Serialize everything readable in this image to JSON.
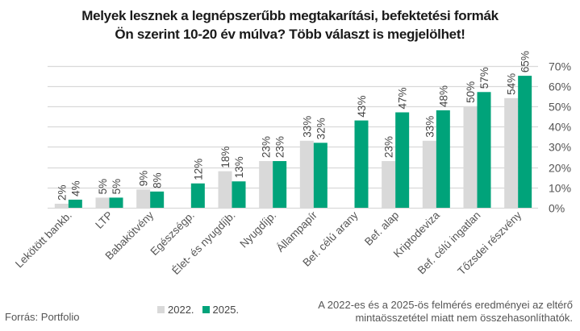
{
  "title": {
    "line1": "Melyek lesznek a legnépszerűbb megtakarítási, befektetési formák",
    "line2": "Ön szerint 10-20 év múlva? Több választ is megjelölhet!"
  },
  "footer": {
    "source": "Forrás: Portfolio",
    "note_line1": "A 2022-es és a 2025-ös felmérés eredményei az eltérő",
    "note_line2": "mintaösszetétel miatt nem összehasonlíthatók."
  },
  "colors": {
    "series_2022": "#d9d9d9",
    "series_2025": "#00a37a",
    "grid": "#d9d9d9",
    "text": "#444444"
  },
  "chart_data": {
    "type": "bar",
    "title": "Melyek lesznek a legnépszerűbb megtakarítási, befektetési formák Ön szerint 10-20 év múlva? Több választ is megjelölhet!",
    "xlabel": "",
    "ylabel": "",
    "ylim": [
      0,
      70
    ],
    "yticks": [
      0,
      10,
      20,
      30,
      40,
      50,
      60,
      70
    ],
    "ytick_labels": [
      "0%",
      "10%",
      "20%",
      "30%",
      "40%",
      "50%",
      "60%",
      "70%"
    ],
    "y_axis_side": "right",
    "grid": true,
    "legend_position": "bottom",
    "categories": [
      "Lekötött bankb.",
      "LTP",
      "Babakötvény",
      "Egészségp.",
      "Élet- és nyugdíjb.",
      "Nyugdíjp.",
      "Állampapír",
      "Bef. célú arany",
      "Bef. alap",
      "Kriptodeviza",
      "Bef. célú ingatlan",
      "Tőzsdei részvény"
    ],
    "series": [
      {
        "name": "2022.",
        "values": [
          2,
          5,
          9,
          null,
          18,
          23,
          33,
          null,
          23,
          33,
          50,
          54
        ],
        "labels": [
          "2%",
          "5%",
          "9%",
          "",
          "18%",
          "23%",
          "33%",
          "",
          "23%",
          "33%",
          "50%",
          "54%"
        ]
      },
      {
        "name": "2025.",
        "values": [
          4,
          5,
          8,
          12,
          13,
          23,
          32,
          43,
          47,
          48,
          57,
          65
        ],
        "labels": [
          "4%",
          "5%",
          "8%",
          "12%",
          "13%",
          "23%",
          "32%",
          "43%",
          "47%",
          "48%",
          "57%",
          "65%"
        ]
      }
    ]
  }
}
